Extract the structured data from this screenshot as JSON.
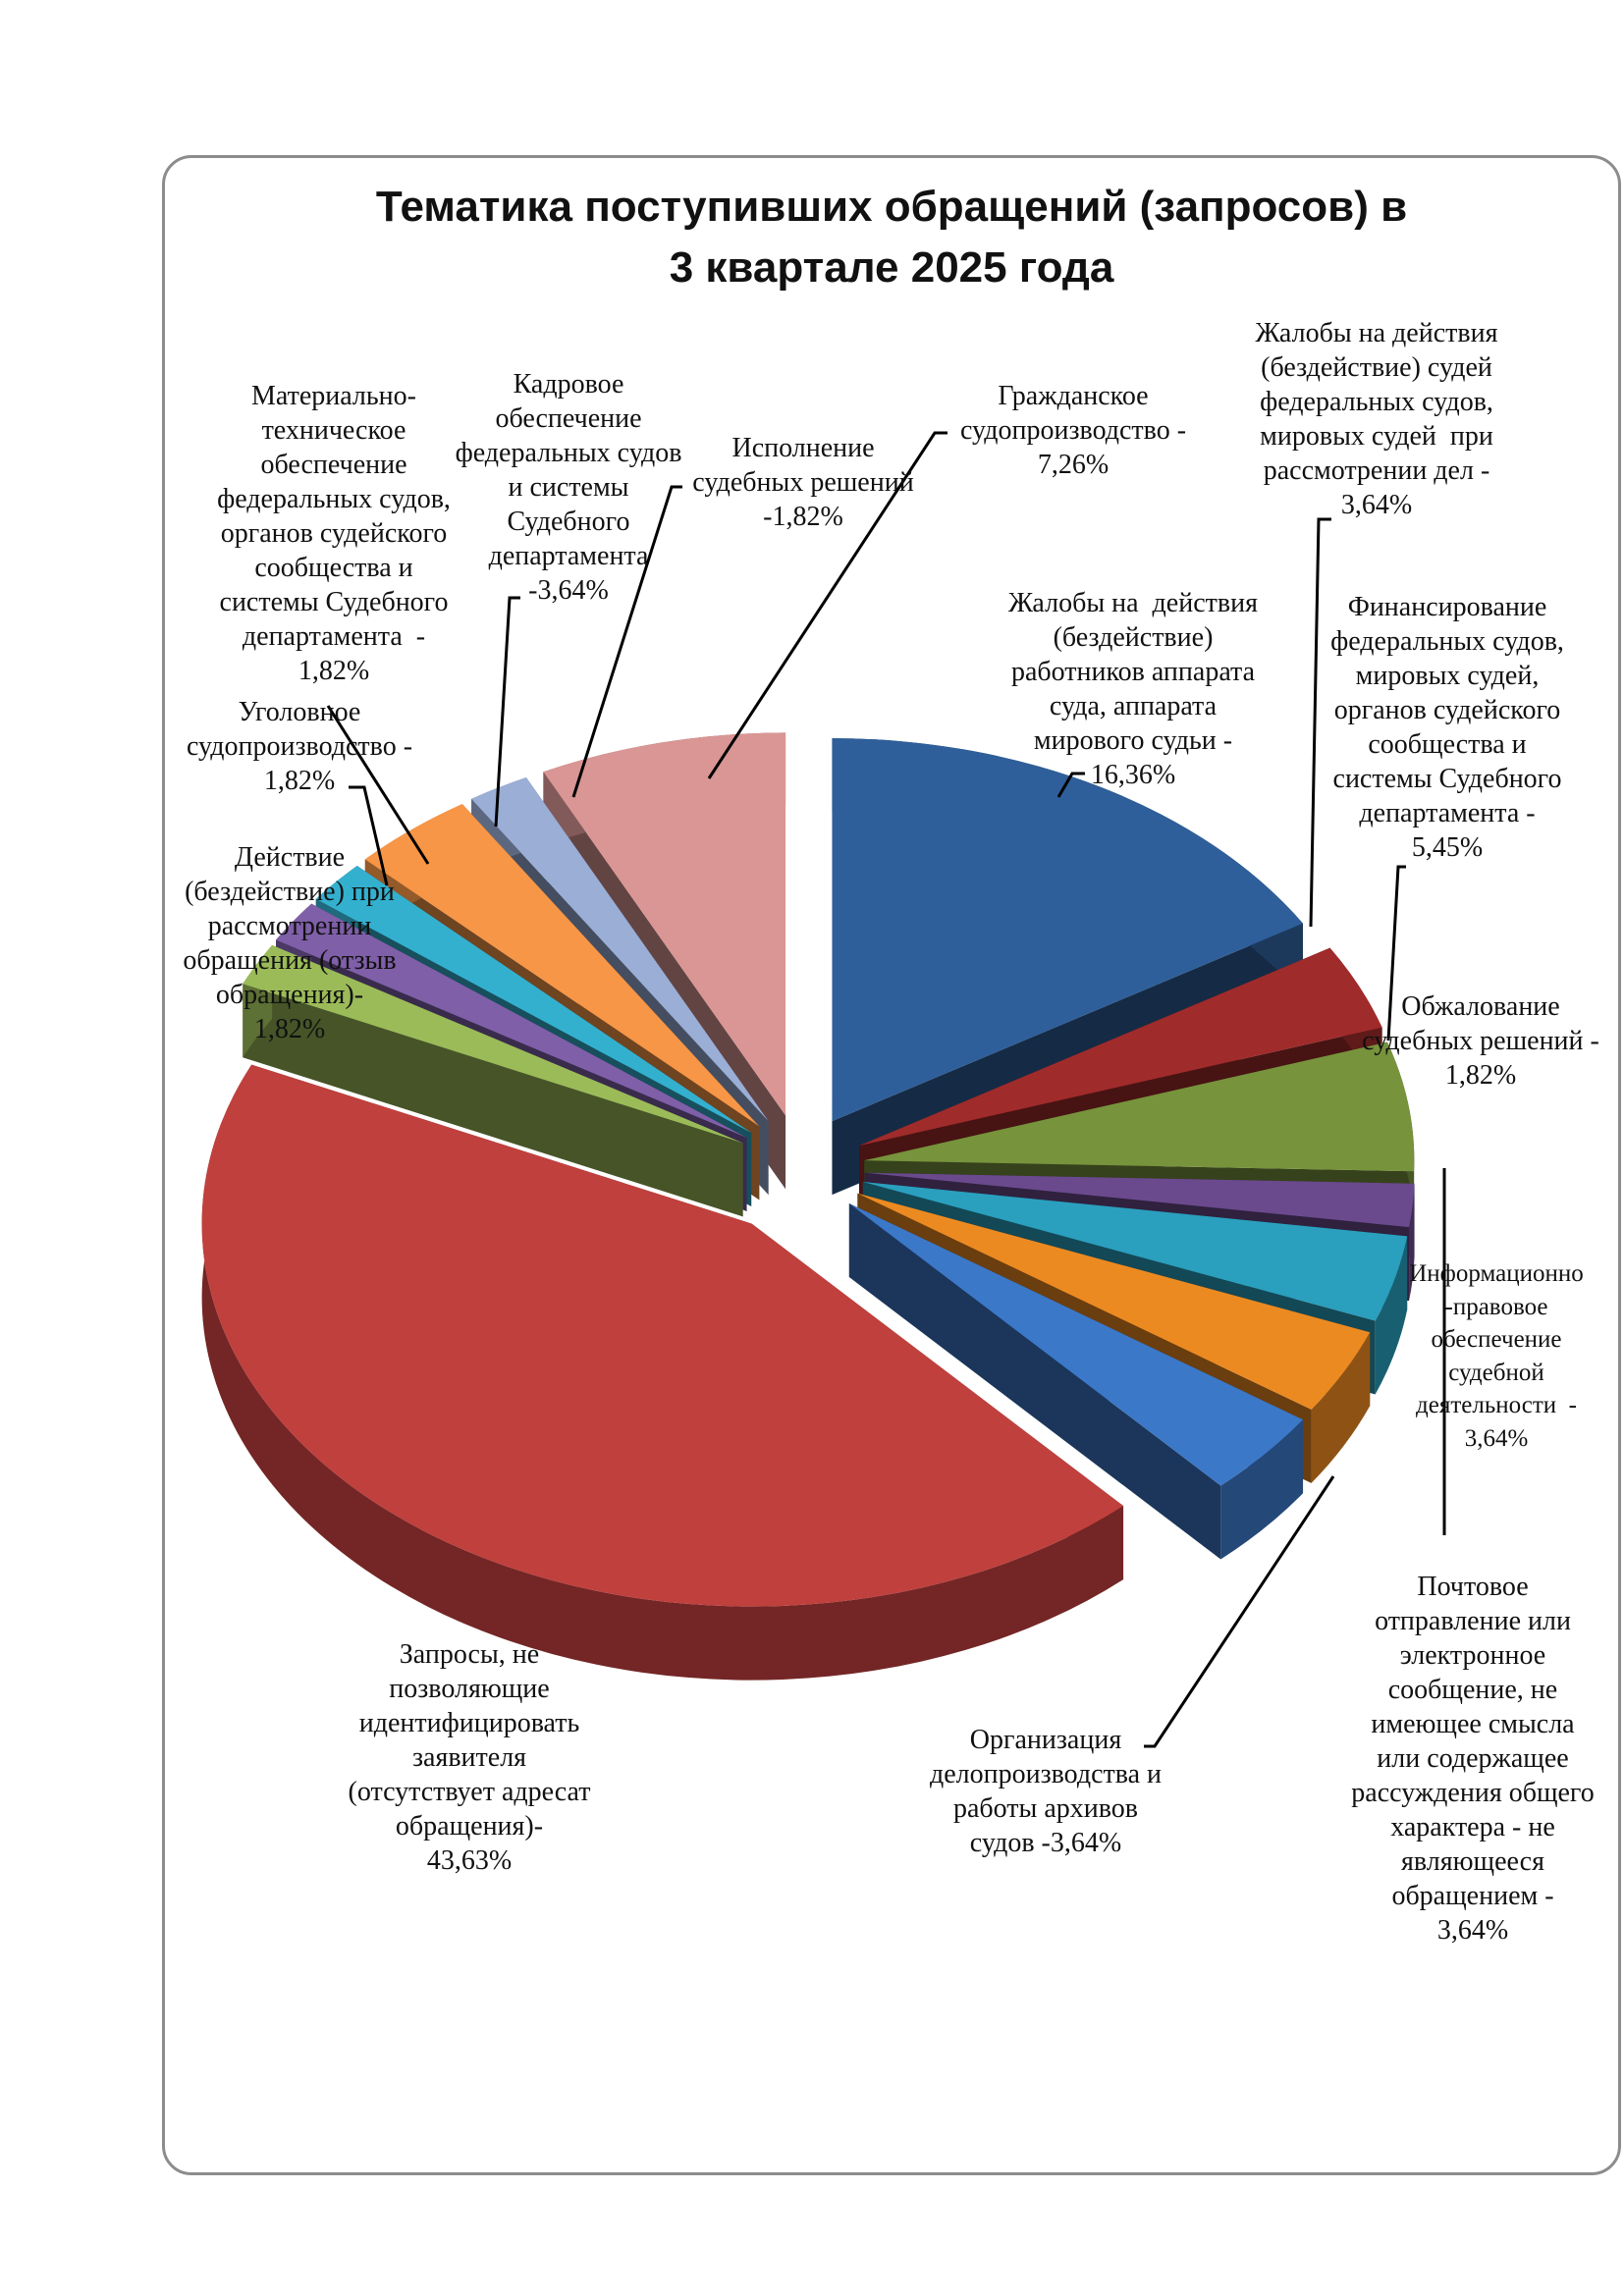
{
  "chart_data": {
    "type": "pie",
    "style": "3d-exploded",
    "title": "Тематика поступивших обращений  (запросов) в\n3 квартале 2025 года",
    "unit": "%",
    "slices": [
      {
        "label": "Жалобы на  действия\n(бездействие)\nработников аппарата\nсуда, аппарата\nмирового судьи -\n16,36%",
        "value": 16.36,
        "color": "#2f5f9a"
      },
      {
        "label": "Жалобы на действия\n(бездействие) судей\nфедеральных судов,\nмировых судей  при\nрассмотрении дел -\n3,64%",
        "value": 3.64,
        "color": "#a02b2b"
      },
      {
        "label": "Финансирование\nфедеральных судов,\nмировых судей,\nорганов судейского\nсообщества и\nсистемы Судебного\nдепартамента -\n5,45%",
        "value": 5.45,
        "color": "#77933c"
      },
      {
        "label": "Обжалование\nсудебных решений -\n1,82%",
        "value": 1.82,
        "color": "#6a4a8c"
      },
      {
        "label": "Информационно\n-правовое\nобеспечение\nсудебной\nдеятельности  -\n3,64%",
        "value": 3.64,
        "color": "#2a9fbe"
      },
      {
        "label": "Почтовое\nотправление или\nэлектронное\nсообщение, не\nимеющее смысла\nили содержащее\nрассуждения общего\nхарактера - не\nявляющееся\nобращением -\n3,64%",
        "value": 3.64,
        "color": "#ec8a22"
      },
      {
        "label": "Организация\nделопроизводства и\nработы архивов\nсудов -3,64%",
        "value": 3.64,
        "color": "#3c78c8"
      },
      {
        "label": "Запросы, не\nпозволяющие\nидентифицировать\nзаявителя\n(отсутствует адресат\nобращения)-\n43,63%",
        "value": 43.63,
        "color": "#c0403d"
      },
      {
        "label": "Действие\n(бездействие) при\nрассмотрении\nобращения (отзыв\nобращения)-\n1,82%",
        "value": 1.82,
        "color": "#9bbb59"
      },
      {
        "label": "Уголовное\nсудопроизводство -\n1,82%",
        "value": 1.82,
        "color": "#7f5fa8"
      },
      {
        "label": "Материально-\nтехническое\nобеспечение\nфедеральных судов,\nорганов судейского\nсообщества и\nсистемы Судебного\nдепартамента  -\n1,82%",
        "value": 1.82,
        "color": "#34b0cf"
      },
      {
        "label": "Кадровое\nобеспечение\nфедеральных судов\nи системы\nСудебного\nдепартамента\n-3,64%",
        "value": 3.64,
        "color": "#f79646"
      },
      {
        "label": "Исполнение\nсудебных решений\n-1,82%",
        "value": 1.82,
        "color": "#9aaed6"
      },
      {
        "label": "Гражданское\nсудопроизводство -\n7,26%",
        "value": 7.26,
        "color": "#d99694"
      }
    ]
  }
}
